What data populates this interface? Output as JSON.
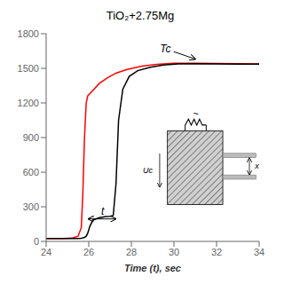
{
  "chart_data": {
    "type": "line",
    "title": "TiO₂+2.75Mg",
    "xlabel": "Time (t), sec",
    "xlim": [
      24,
      34
    ],
    "ylim": [
      0,
      1800
    ],
    "xticks": [
      24,
      26,
      28,
      30,
      32,
      34
    ],
    "yticks": [
      0,
      300,
      600,
      900,
      1200,
      1500,
      1800
    ],
    "grid": false,
    "series": [
      {
        "color": "red",
        "x": [
          24.0,
          24.8,
          25.2,
          25.5,
          25.65,
          25.72,
          25.8,
          25.88,
          25.95,
          26.05,
          26.2,
          26.5,
          26.9,
          27.3,
          27.8,
          28.5,
          29.2,
          30.0,
          31.0,
          32.0,
          33.0,
          34.0
        ],
        "values": [
          25,
          25,
          28,
          45,
          120,
          400,
          900,
          1200,
          1260,
          1280,
          1310,
          1370,
          1420,
          1460,
          1490,
          1520,
          1535,
          1545,
          1545,
          1542,
          1540,
          1538
        ]
      },
      {
        "color": "black",
        "x": [
          24.0,
          24.8,
          25.2,
          25.5,
          25.65,
          25.72,
          25.8,
          25.88,
          25.95,
          26.05,
          26.2,
          26.5,
          26.8,
          27.0,
          27.15,
          27.28,
          27.4,
          27.6,
          27.9,
          28.3,
          28.9,
          29.5,
          30.2,
          31.0,
          32.0,
          33.0,
          34.0
        ],
        "values": [
          25,
          25,
          25,
          25,
          27,
          30,
          35,
          45,
          70,
          130,
          185,
          205,
          215,
          218,
          225,
          500,
          1050,
          1320,
          1430,
          1480,
          1510,
          1528,
          1538,
          1540,
          1538,
          1537,
          1536
        ]
      }
    ],
    "annotations": [
      {
        "text": "Tc",
        "x": 29.6,
        "y": 1670,
        "arrow_to": [
          31.0,
          1580
        ]
      },
      {
        "text": "t",
        "x": 26.65,
        "y": 230,
        "span": [
          25.98,
          27.27
        ],
        "span_y": 195
      }
    ],
    "inset_labels": [
      "Uc",
      "x",
      "~"
    ]
  }
}
